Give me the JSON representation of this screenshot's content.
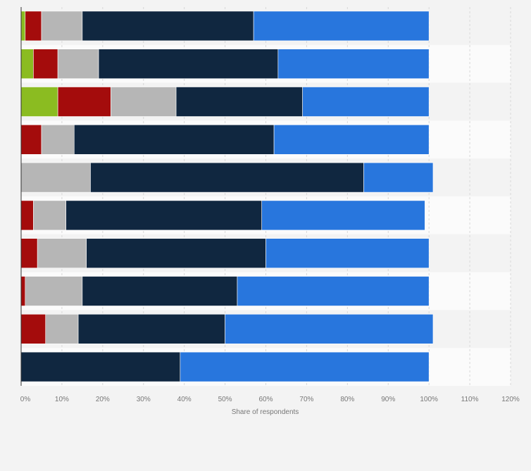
{
  "chart_data": {
    "type": "bar",
    "orientation": "horizontal",
    "stacked": true,
    "xlabel": "Share of respondents",
    "ylabel": "",
    "xlim": [
      0,
      120
    ],
    "x_ticks": [
      0,
      10,
      20,
      30,
      40,
      50,
      60,
      70,
      80,
      90,
      100,
      110,
      120
    ],
    "x_tick_labels": [
      "0%",
      "10%",
      "20%",
      "30%",
      "40%",
      "50%",
      "60%",
      "70%",
      "80%",
      "90%",
      "100%",
      "110%",
      "120%"
    ],
    "grid": true,
    "legend": "none",
    "categories": [
      "",
      "",
      "",
      "",
      "",
      "",
      "",
      "",
      "",
      ""
    ],
    "series": [
      {
        "color": "#8bbc21",
        "values": [
          1,
          3,
          9,
          0,
          0,
          0,
          0,
          0,
          0,
          0
        ]
      },
      {
        "color": "#a40c0c",
        "values": [
          4,
          6,
          13,
          5,
          0,
          3,
          4,
          1,
          6,
          0
        ]
      },
      {
        "color": "#b6b6b6",
        "values": [
          10,
          10,
          16,
          8,
          17,
          8,
          12,
          14,
          8,
          0
        ]
      },
      {
        "color": "#102740",
        "values": [
          42,
          44,
          31,
          49,
          67,
          48,
          44,
          38,
          36,
          39
        ]
      },
      {
        "color": "#2876dd",
        "values": [
          43,
          37,
          31,
          38,
          17,
          40,
          40,
          47,
          51,
          61
        ]
      }
    ]
  }
}
